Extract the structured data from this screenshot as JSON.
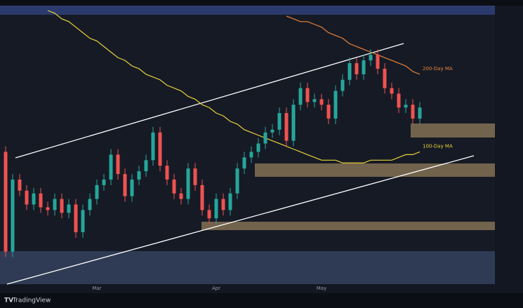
{
  "chart_data": {
    "type": "candlestick",
    "categories": [
      null,
      null,
      null,
      null,
      null,
      null,
      null,
      null,
      null,
      null,
      null,
      null,
      null,
      "Mar",
      null,
      null,
      null,
      null,
      null,
      null,
      null,
      null,
      null,
      null,
      null,
      null,
      null,
      null,
      null,
      null,
      "Apr",
      null,
      null,
      null,
      null,
      null,
      null,
      null,
      null,
      null,
      null,
      null,
      null,
      null,
      null,
      "May",
      null,
      null,
      null,
      null,
      null,
      null,
      null,
      null,
      null,
      null,
      null,
      null,
      null,
      null
    ],
    "open": [
      49,
      13,
      39,
      35,
      30,
      34,
      29,
      28,
      32,
      27,
      30,
      20,
      28,
      32,
      37,
      39,
      48,
      41,
      33,
      39,
      42,
      46,
      56,
      44,
      39,
      34,
      32,
      43,
      37,
      28,
      25,
      32,
      28,
      34,
      43,
      47,
      49,
      52,
      56,
      57,
      63,
      53,
      66,
      72,
      67,
      68,
      66,
      61,
      71,
      75,
      81,
      77,
      82,
      84,
      79,
      72,
      70,
      65,
      66,
      61
    ],
    "high": [
      51,
      41,
      41,
      37,
      36,
      36,
      31,
      34,
      34,
      32,
      32,
      30,
      34,
      39,
      41,
      50,
      50,
      43,
      41,
      44,
      48,
      58,
      58,
      46,
      41,
      36,
      45,
      45,
      39,
      30,
      34,
      34,
      36,
      45,
      49,
      51,
      54,
      58,
      59,
      65,
      65,
      68,
      74,
      74,
      70,
      70,
      68,
      73,
      77,
      83,
      83,
      84,
      86,
      86,
      81,
      74,
      72,
      68,
      68,
      67
    ],
    "low": [
      11,
      11,
      33,
      28,
      28,
      27,
      26,
      26,
      25,
      25,
      18,
      18,
      26,
      30,
      35,
      37,
      39,
      31,
      31,
      37,
      40,
      44,
      42,
      37,
      32,
      30,
      30,
      35,
      26,
      23,
      23,
      26,
      26,
      32,
      41,
      45,
      47,
      50,
      54,
      55,
      51,
      51,
      64,
      65,
      65,
      64,
      59,
      59,
      69,
      73,
      75,
      75,
      80,
      77,
      70,
      68,
      63,
      63,
      59,
      59
    ],
    "close": [
      13,
      39,
      35,
      30,
      34,
      29,
      28,
      32,
      27,
      30,
      20,
      28,
      32,
      37,
      39,
      48,
      41,
      33,
      39,
      42,
      46,
      56,
      44,
      39,
      34,
      32,
      43,
      37,
      28,
      25,
      32,
      28,
      34,
      43,
      47,
      49,
      52,
      56,
      57,
      63,
      53,
      66,
      72,
      67,
      68,
      66,
      61,
      71,
      75,
      81,
      77,
      82,
      84,
      79,
      72,
      70,
      65,
      66,
      61,
      65
    ],
    "up_color": "#26a69a",
    "down_color": "#ef5350",
    "ylim": [
      0,
      100
    ],
    "overlays": [
      {
        "name": "200-Day MA",
        "color": "#e8833a",
        "values": [
          null,
          null,
          null,
          null,
          null,
          null,
          null,
          null,
          null,
          null,
          null,
          null,
          null,
          null,
          null,
          null,
          null,
          null,
          null,
          null,
          null,
          null,
          null,
          null,
          null,
          null,
          null,
          null,
          null,
          null,
          null,
          null,
          null,
          null,
          null,
          null,
          null,
          null,
          null,
          null,
          98,
          97,
          96,
          96,
          95,
          94,
          92,
          91,
          90,
          88,
          87,
          86,
          85,
          84,
          83,
          82,
          81,
          80,
          78,
          77
        ]
      },
      {
        "name": "100-Day MA",
        "color": "#e8d23a",
        "values": [
          null,
          null,
          null,
          null,
          null,
          null,
          100,
          99,
          97,
          96,
          94,
          92,
          90,
          89,
          87,
          85,
          83,
          82,
          80,
          79,
          77,
          76,
          75,
          73,
          72,
          71,
          69,
          68,
          66,
          65,
          63,
          62,
          60,
          59,
          57,
          56,
          55,
          54,
          53,
          52,
          51,
          50,
          49,
          48,
          47,
          46,
          46,
          46,
          45,
          45,
          45,
          45,
          46,
          46,
          46,
          46,
          47,
          48,
          48,
          49
        ]
      }
    ],
    "brand": "TradingView"
  }
}
